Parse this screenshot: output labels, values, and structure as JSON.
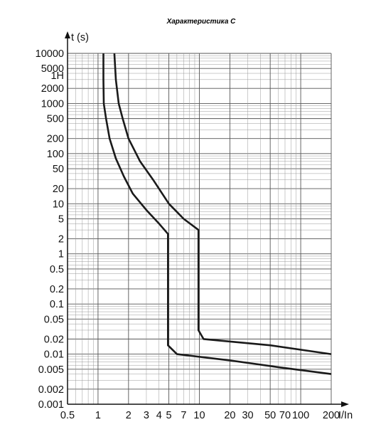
{
  "chart_data": {
    "type": "line",
    "title": "Характеристика С",
    "xlabel": "I/In",
    "ylabel": "t (s)",
    "x_scale": "log",
    "y_scale": "log",
    "xlim": [
      0.5,
      200
    ],
    "ylim": [
      0.001,
      10000
    ],
    "grid": true,
    "x_ticks": [
      {
        "value": 0.5,
        "label": "0.5"
      },
      {
        "value": 1,
        "label": "1"
      },
      {
        "value": 2,
        "label": "2"
      },
      {
        "value": 3,
        "label": "3"
      },
      {
        "value": 4,
        "label": "4"
      },
      {
        "value": 5,
        "label": "5"
      },
      {
        "value": 7,
        "label": "7"
      },
      {
        "value": 10,
        "label": "10"
      },
      {
        "value": 20,
        "label": "20"
      },
      {
        "value": 30,
        "label": "30"
      },
      {
        "value": 50,
        "label": "50"
      },
      {
        "value": 70,
        "label": "70"
      },
      {
        "value": 100,
        "label": "100"
      },
      {
        "value": 200,
        "label": "200"
      }
    ],
    "y_ticks": [
      {
        "value": 10000,
        "label": "10000"
      },
      {
        "value": 5000,
        "label": "5000"
      },
      {
        "value": 3600,
        "label": "1H"
      },
      {
        "value": 2000,
        "label": "2000"
      },
      {
        "value": 1000,
        "label": "1000"
      },
      {
        "value": 500,
        "label": "500"
      },
      {
        "value": 200,
        "label": "200"
      },
      {
        "value": 100,
        "label": "100"
      },
      {
        "value": 50,
        "label": "50"
      },
      {
        "value": 20,
        "label": "20"
      },
      {
        "value": 10,
        "label": "10"
      },
      {
        "value": 5,
        "label": "5"
      },
      {
        "value": 2,
        "label": "2"
      },
      {
        "value": 1,
        "label": "1"
      },
      {
        "value": 0.5,
        "label": "0.5"
      },
      {
        "value": 0.2,
        "label": "0.2"
      },
      {
        "value": 0.1,
        "label": "0.1"
      },
      {
        "value": 0.05,
        "label": "0.05"
      },
      {
        "value": 0.02,
        "label": "0.02"
      },
      {
        "value": 0.01,
        "label": "0.01"
      },
      {
        "value": 0.005,
        "label": "0.005"
      },
      {
        "value": 0.002,
        "label": "0.002"
      },
      {
        "value": 0.001,
        "label": "0.001"
      }
    ],
    "series": [
      {
        "points": [
          [
            1.13,
            10000
          ],
          [
            1.13,
            3000
          ],
          [
            1.14,
            1000
          ],
          [
            1.2,
            500
          ],
          [
            1.3,
            200
          ],
          [
            1.5,
            80
          ],
          [
            1.8,
            35
          ],
          [
            2.2,
            16
          ],
          [
            3,
            7.5
          ],
          [
            4,
            4
          ],
          [
            4.9,
            2.5
          ],
          [
            4.9,
            0.015
          ],
          [
            6,
            0.01
          ],
          [
            20,
            0.0075
          ],
          [
            60,
            0.0055
          ],
          [
            200,
            0.004
          ]
        ]
      },
      {
        "points": [
          [
            1.45,
            10000
          ],
          [
            1.5,
            3000
          ],
          [
            1.6,
            1000
          ],
          [
            1.75,
            500
          ],
          [
            2,
            200
          ],
          [
            2.6,
            70
          ],
          [
            3.5,
            30
          ],
          [
            5,
            10
          ],
          [
            7,
            5
          ],
          [
            9.8,
            3
          ],
          [
            9.8,
            0.03
          ],
          [
            11,
            0.02
          ],
          [
            50,
            0.015
          ],
          [
            200,
            0.01
          ]
        ]
      }
    ]
  }
}
